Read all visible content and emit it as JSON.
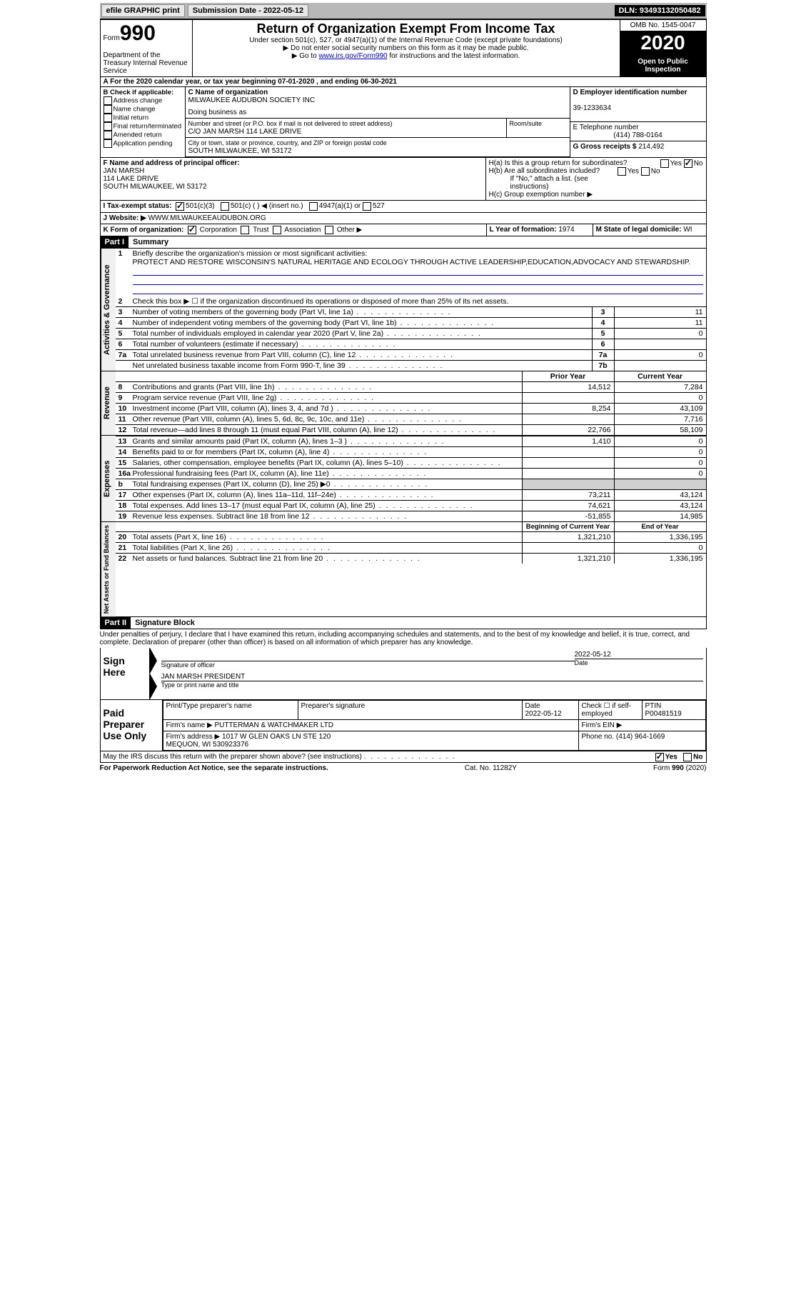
{
  "topbar": {
    "efile": "efile GRAPHIC print",
    "submission_label": "Submission Date - 2022-05-12",
    "dln": "DLN: 93493132050482"
  },
  "header": {
    "form_prefix": "Form",
    "form_number": "990",
    "dept": "Department of the Treasury\nInternal Revenue Service",
    "title": "Return of Organization Exempt From Income Tax",
    "subtitle": "Under section 501(c), 527, or 4947(a)(1) of the Internal Revenue Code (except private foundations)",
    "note1": "▶ Do not enter social security numbers on this form as it may be made public.",
    "note2_prefix": "▶ Go to ",
    "note2_link": "www.irs.gov/Form990",
    "note2_suffix": " for instructions and the latest information.",
    "omb": "OMB No. 1545-0047",
    "year": "2020",
    "open": "Open to Public Inspection"
  },
  "row_a": "A For the 2020 calendar year, or tax year beginning 07-01-2020   , and ending 06-30-2021",
  "section_b": {
    "label": "B Check if applicable:",
    "items": [
      "Address change",
      "Name change",
      "Initial return",
      "Final return/terminated",
      "Amended return",
      "Application pending"
    ]
  },
  "section_c": {
    "label": "C Name of organization",
    "name": "MILWAUKEE AUDUBON SOCIETY INC",
    "dba_label": "Doing business as",
    "addr_label": "Number and street (or P.O. box if mail is not delivered to street address)",
    "room_label": "Room/suite",
    "addr": "C/O JAN MARSH 114 LAKE DRIVE",
    "city_label": "City or town, state or province, country, and ZIP or foreign postal code",
    "city": "SOUTH MILWAUKEE, WI  53172"
  },
  "section_d": {
    "label": "D Employer identification number",
    "value": "39-1233634"
  },
  "section_e": {
    "label": "E Telephone number",
    "value": "(414) 788-0164"
  },
  "section_g": {
    "label": "G Gross receipts $ ",
    "value": "214,492"
  },
  "section_f": {
    "label": "F Name and address of principal officer:",
    "name": "JAN MARSH",
    "addr1": "114 LAKE DRIVE",
    "addr2": "SOUTH MILWAUKEE, WI  53172"
  },
  "section_h": {
    "ha": "H(a)  Is this a group return for subordinates?",
    "hb": "H(b)  Are all subordinates included?",
    "hb_note": "If \"No,\" attach a list. (see instructions)",
    "hc": "H(c)  Group exemption number ▶",
    "yes": "Yes",
    "no": "No"
  },
  "section_i": {
    "label": "I  Tax-exempt status:",
    "opt1": "501(c)(3)",
    "opt2": "501(c) (   ) ◀ (insert no.)",
    "opt3": "4947(a)(1) or",
    "opt4": "527"
  },
  "section_j": {
    "label": "J  Website: ▶",
    "value": "WWW.MILWAUKEEAUDUBON.ORG"
  },
  "section_k": {
    "label": "K Form of organization:",
    "opts": [
      "Corporation",
      "Trust",
      "Association",
      "Other ▶"
    ]
  },
  "section_l": {
    "label": "L Year of formation: ",
    "value": "1974"
  },
  "section_m": {
    "label": "M State of legal domicile: ",
    "value": "WI"
  },
  "part1": {
    "header": "Part I",
    "title": "Summary",
    "line1_label": "Briefly describe the organization's mission or most significant activities:",
    "line1_text": "PROTECT AND RESTORE WISCONSIN'S NATURAL HERITAGE AND ECOLOGY THROUGH ACTIVE LEADERSHIP,EDUCATION,ADVOCACY AND STEWARDSHIP.",
    "line2": "Check this box ▶ ☐ if the organization discontinued its operations or disposed of more than 25% of its net assets.",
    "side_gov": "Activities & Governance",
    "side_rev": "Revenue",
    "side_exp": "Expenses",
    "side_net": "Net Assets or Fund Balances",
    "col_prior": "Prior Year",
    "col_current": "Current Year",
    "col_begin": "Beginning of Current Year",
    "col_end": "End of Year",
    "gov_lines": [
      {
        "n": "3",
        "d": "Number of voting members of the governing body (Part VI, line 1a)",
        "box": "3",
        "v": "11"
      },
      {
        "n": "4",
        "d": "Number of independent voting members of the governing body (Part VI, line 1b)",
        "box": "4",
        "v": "11"
      },
      {
        "n": "5",
        "d": "Total number of individuals employed in calendar year 2020 (Part V, line 2a)",
        "box": "5",
        "v": "0"
      },
      {
        "n": "6",
        "d": "Total number of volunteers (estimate if necessary)",
        "box": "6",
        "v": ""
      },
      {
        "n": "7a",
        "d": "Total unrelated business revenue from Part VIII, column (C), line 12",
        "box": "7a",
        "v": "0"
      },
      {
        "n": "",
        "d": "Net unrelated business taxable income from Form 990-T, line 39",
        "box": "7b",
        "v": ""
      }
    ],
    "rev_lines": [
      {
        "n": "8",
        "d": "Contributions and grants (Part VIII, line 1h)",
        "p": "14,512",
        "c": "7,284"
      },
      {
        "n": "9",
        "d": "Program service revenue (Part VIII, line 2g)",
        "p": "",
        "c": "0"
      },
      {
        "n": "10",
        "d": "Investment income (Part VIII, column (A), lines 3, 4, and 7d )",
        "p": "8,254",
        "c": "43,109"
      },
      {
        "n": "11",
        "d": "Other revenue (Part VIII, column (A), lines 5, 6d, 8c, 9c, 10c, and 11e)",
        "p": "",
        "c": "7,716"
      },
      {
        "n": "12",
        "d": "Total revenue—add lines 8 through 11 (must equal Part VIII, column (A), line 12)",
        "p": "22,766",
        "c": "58,109"
      }
    ],
    "exp_lines": [
      {
        "n": "13",
        "d": "Grants and similar amounts paid (Part IX, column (A), lines 1–3 )",
        "p": "1,410",
        "c": "0"
      },
      {
        "n": "14",
        "d": "Benefits paid to or for members (Part IX, column (A), line 4)",
        "p": "",
        "c": "0"
      },
      {
        "n": "15",
        "d": "Salaries, other compensation, employee benefits (Part IX, column (A), lines 5–10)",
        "p": "",
        "c": "0"
      },
      {
        "n": "16a",
        "d": "Professional fundraising fees (Part IX, column (A), line 11e)",
        "p": "",
        "c": "0"
      },
      {
        "n": "b",
        "d": "Total fundraising expenses (Part IX, column (D), line 25) ▶0",
        "p": "gray",
        "c": "gray"
      },
      {
        "n": "17",
        "d": "Other expenses (Part IX, column (A), lines 11a–11d, 11f–24e)",
        "p": "73,211",
        "c": "43,124"
      },
      {
        "n": "18",
        "d": "Total expenses. Add lines 13–17 (must equal Part IX, column (A), line 25)",
        "p": "74,621",
        "c": "43,124"
      },
      {
        "n": "19",
        "d": "Revenue less expenses. Subtract line 18 from line 12",
        "p": "-51,855",
        "c": "14,985"
      }
    ],
    "net_lines": [
      {
        "n": "20",
        "d": "Total assets (Part X, line 16)",
        "p": "1,321,210",
        "c": "1,336,195"
      },
      {
        "n": "21",
        "d": "Total liabilities (Part X, line 26)",
        "p": "",
        "c": "0"
      },
      {
        "n": "22",
        "d": "Net assets or fund balances. Subtract line 21 from line 20",
        "p": "1,321,210",
        "c": "1,336,195"
      }
    ]
  },
  "part2": {
    "header": "Part II",
    "title": "Signature Block",
    "declaration": "Under penalties of perjury, I declare that I have examined this return, including accompanying schedules and statements, and to the best of my knowledge and belief, it is true, correct, and complete. Declaration of preparer (other than officer) is based on all information of which preparer has any knowledge.",
    "sign_here": "Sign Here",
    "sig_officer": "Signature of officer",
    "sig_date": "2022-05-12",
    "date_label": "Date",
    "officer_name": "JAN MARSH PRESIDENT",
    "type_label": "Type or print name and title",
    "paid_label": "Paid Preparer Use Only",
    "prep_name_label": "Print/Type preparer's name",
    "prep_sig_label": "Preparer's signature",
    "prep_date": "Date\n2022-05-12",
    "check_label": "Check ☐ if self-employed",
    "ptin_label": "PTIN",
    "ptin": "P00481519",
    "firm_name_label": "Firm's name     ▶",
    "firm_name": "PUTTERMAN & WATCHMAKER LTD",
    "firm_ein_label": "Firm's EIN ▶",
    "firm_addr_label": "Firm's address ▶",
    "firm_addr": "1017 W GLEN OAKS LN STE 120\nMEQUON, WI  530923376",
    "phone_label": "Phone no. ",
    "phone": "(414) 964-1669",
    "may_irs": "May the IRS discuss this return with the preparer shown above? (see instructions)",
    "yes": "Yes",
    "no": "No"
  },
  "footer": {
    "left": "For Paperwork Reduction Act Notice, see the separate instructions.",
    "mid": "Cat. No. 11282Y",
    "right": "Form 990 (2020)"
  }
}
